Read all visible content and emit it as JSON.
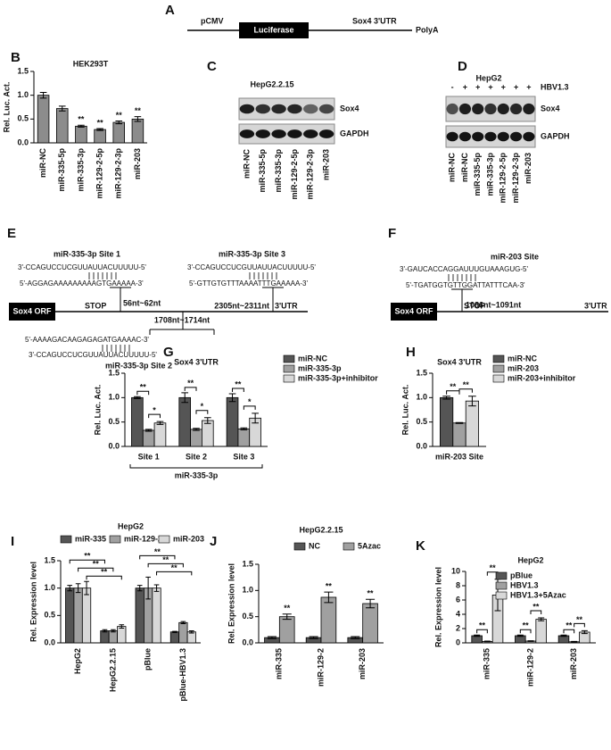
{
  "panel_labels": [
    "A",
    "B",
    "C",
    "D",
    "E",
    "F",
    "G",
    "H",
    "I",
    "J",
    "K"
  ],
  "construct": {
    "promoter": "pCMV",
    "gene": "Luciferase",
    "utr": "Sox4 3'UTR",
    "terminator": "PolyA"
  },
  "blots": [
    {
      "title": "HepG2.2.15",
      "lanes": [
        "miR-NC",
        "miR-335-5p",
        "miR-335-3p",
        "miR-129-2-5p",
        "miR-129-2-3p",
        "miR-203"
      ],
      "bands": [
        "Sox4",
        "GAPDH"
      ]
    },
    {
      "title": "HepG2",
      "condition": "HBV1.3",
      "condition_states": [
        "-",
        "+",
        "+",
        "+",
        "+",
        "+",
        "+"
      ],
      "lanes": [
        "miR-NC",
        "miR-NC",
        "miR-335-5p",
        "miR-335-3p",
        "miR-129-2-5p",
        "miR-129-2-3p",
        "miR-203"
      ],
      "bands": [
        "Sox4",
        "GAPDH"
      ]
    }
  ],
  "site_maps": [
    {
      "orf": "Sox4 ORF",
      "stop": "STOP",
      "utr": "3'UTR",
      "sites": [
        {
          "name": "miR-335-3p Site 1",
          "mirna": "3'-CCAGUCCUCGUUAUUACUUUUU-5'",
          "target": "5'-AGGAGAAAAAAAAAGTGAAAAA-3'",
          "position": "56nt~62nt"
        },
        {
          "name": "miR-335-3p Site 2",
          "mirna": "3'-CCAGUCCUCGUUAUUACUUUUU-5'",
          "target": "5'-AAAAGACAAGAGAGATGAAAAC-3'",
          "position": "1708nt~1714nt"
        },
        {
          "name": "miR-335-3p Site 3",
          "mirna": "3'-CCAGUCCUCGUUAUUACUUUUU-5'",
          "target": "5'-GTTGTGTTTAAAATTTGAAAAA-3'",
          "position": "2305nt~2311nt"
        }
      ]
    },
    {
      "orf": "Sox4 ORF",
      "stop": "STOP",
      "utr": "3'UTR",
      "sites": [
        {
          "name": "miR-203 Site",
          "mirna": "3'-GAUCACCAGGAUUUGUAAAGUG-5'",
          "target": "5'-TGATGGTGTTGGATTATTTCAA-3'",
          "position": "1086nt~1091nt"
        }
      ]
    }
  ],
  "chart_data": [
    {
      "type": "bar",
      "title": "HEK293T",
      "ylabel": "Rel. Luc. Act.",
      "categories": [
        "miR-NC",
        "miR-335-5p",
        "miR-335-3p",
        "miR-129-2-5p",
        "miR-129-2-3p",
        "miR-203"
      ],
      "values": [
        1.0,
        0.72,
        0.35,
        0.28,
        0.43,
        0.5
      ],
      "errors": [
        0.06,
        0.05,
        0.02,
        0.02,
        0.03,
        0.05
      ],
      "significance": [
        null,
        null,
        "**",
        "**",
        "**",
        "**"
      ],
      "color": "#8c8c8c",
      "ylim": [
        0,
        1.5
      ],
      "yticks": [
        {
          "value": 0,
          "label": "0.0"
        },
        0.5,
        {
          "value": 1,
          "label": "1.0"
        },
        1.5
      ]
    },
    {
      "type": "bar",
      "title": "Sox4 3'UTR",
      "ylabel": "Rel. Luc. Act.",
      "xlabel": "miR-335-3p",
      "categories": [
        "Site 1",
        "Site 2",
        "Site 3"
      ],
      "series": [
        {
          "name": "miR-NC",
          "color": "#555555",
          "values": [
            1.0,
            1.0,
            1.0
          ],
          "errors": [
            0.02,
            0.1,
            0.08
          ]
        },
        {
          "name": "miR-335-3p",
          "color": "#a0a0a0",
          "values": [
            0.33,
            0.35,
            0.36
          ],
          "errors": [
            0.02,
            0.02,
            0.02
          ]
        },
        {
          "name": "miR-335-3p+inhibitor",
          "color": "#d8d8d8",
          "values": [
            0.48,
            0.53,
            0.58
          ],
          "errors": [
            0.03,
            0.06,
            0.1
          ]
        }
      ],
      "brackets": [
        [
          "**",
          "*"
        ],
        [
          "**",
          "*"
        ],
        [
          "**",
          "*"
        ]
      ],
      "legend": "right",
      "ylim": [
        0,
        1.5
      ],
      "yticks": [
        {
          "value": 0,
          "label": "0.0"
        },
        0.5,
        {
          "value": 1,
          "label": "1.0"
        },
        1.5
      ]
    },
    {
      "type": "bar",
      "title": "Sox4 3'UTR",
      "ylabel": "Rel. Luc. Act.",
      "categories": [
        "miR-203 Site"
      ],
      "series": [
        {
          "name": "miR-NC",
          "color": "#555555",
          "values": [
            1.0
          ],
          "errors": [
            0.03
          ]
        },
        {
          "name": "miR-203",
          "color": "#a0a0a0",
          "values": [
            0.48
          ],
          "errors": [
            0.01
          ]
        },
        {
          "name": "miR-203+inhibitor",
          "color": "#d8d8d8",
          "values": [
            0.93
          ],
          "errors": [
            0.1
          ]
        }
      ],
      "brackets": [
        [
          "**",
          "**"
        ]
      ],
      "legend": "right",
      "ylim": [
        0,
        1.5
      ],
      "yticks": [
        {
          "value": 0,
          "label": "0.0"
        },
        0.5,
        {
          "value": 1,
          "label": "1.0"
        },
        1.5
      ]
    },
    {
      "type": "bar",
      "title": "HepG2",
      "ylabel": "Rel. Expression level",
      "categories": [
        "HepG2",
        "HepG2.2.15",
        "pBlue",
        "pBlue-HBV1.3"
      ],
      "series": [
        {
          "name": "miR-335",
          "color": "#555555",
          "values": [
            1.0,
            0.22,
            1.0,
            0.2
          ],
          "errors": [
            0.05,
            0.02,
            0.05,
            0.01
          ]
        },
        {
          "name": "miR-129-2",
          "color": "#a0a0a0",
          "values": [
            1.0,
            0.22,
            1.0,
            0.37
          ],
          "errors": [
            0.08,
            0.02,
            0.2,
            0.02
          ]
        },
        {
          "name": "miR-203",
          "color": "#d8d8d8",
          "values": [
            1.0,
            0.3,
            1.0,
            0.2
          ],
          "errors": [
            0.12,
            0.03,
            0.06,
            0.02
          ]
        }
      ],
      "group_brackets": [
        "**",
        "**",
        "**",
        "**",
        "**",
        "**"
      ],
      "legend": "top",
      "ylim": [
        0,
        1.5
      ],
      "yticks": [
        {
          "value": 0,
          "label": "0.0"
        },
        0.5,
        {
          "value": 1,
          "label": "1.0"
        },
        1.5
      ]
    },
    {
      "type": "bar",
      "title": "HepG2.2.15",
      "ylabel": "Rel. Expression level",
      "categories": [
        "miR-335",
        "miR-129-2",
        "miR-203"
      ],
      "series": [
        {
          "name": "NC",
          "color": "#555555",
          "values": [
            0.1,
            0.1,
            0.1
          ],
          "errors": [
            0.02,
            0.02,
            0.02
          ]
        },
        {
          "name": "5Azac",
          "color": "#a0a0a0",
          "values": [
            0.5,
            0.87,
            0.75
          ],
          "errors": [
            0.05,
            0.1,
            0.08
          ],
          "significance": [
            "**",
            "**",
            "**"
          ]
        }
      ],
      "legend": "top",
      "ylim": [
        0,
        1.5
      ],
      "yticks": [
        {
          "value": 0,
          "label": "0.0"
        },
        0.5,
        {
          "value": 1,
          "label": "1.0"
        },
        1.5
      ]
    },
    {
      "type": "bar",
      "title": "HepG2",
      "ylabel": "Rel. Expression level",
      "categories": [
        "miR-335",
        "miR-129-2",
        "miR-203"
      ],
      "series": [
        {
          "name": "pBlue",
          "color": "#555555",
          "values": [
            1.0,
            1.0,
            1.0
          ],
          "errors": [
            0.1,
            0.1,
            0.1
          ]
        },
        {
          "name": "HBV1.3",
          "color": "#a0a0a0",
          "values": [
            0.2,
            0.25,
            0.15
          ],
          "errors": [
            0.05,
            0.05,
            0.05
          ]
        },
        {
          "name": "HBV1.3+5Azac",
          "color": "#d8d8d8",
          "values": [
            6.7,
            3.3,
            1.5
          ],
          "errors": [
            2.2,
            0.2,
            0.2
          ]
        }
      ],
      "brackets": [
        [
          "**",
          "**"
        ],
        [
          "**",
          "**"
        ],
        [
          "**",
          "**"
        ]
      ],
      "legend": "upper left",
      "ylim": [
        0,
        10
      ],
      "yticks": [
        0,
        2,
        4,
        6,
        8,
        10
      ]
    }
  ]
}
